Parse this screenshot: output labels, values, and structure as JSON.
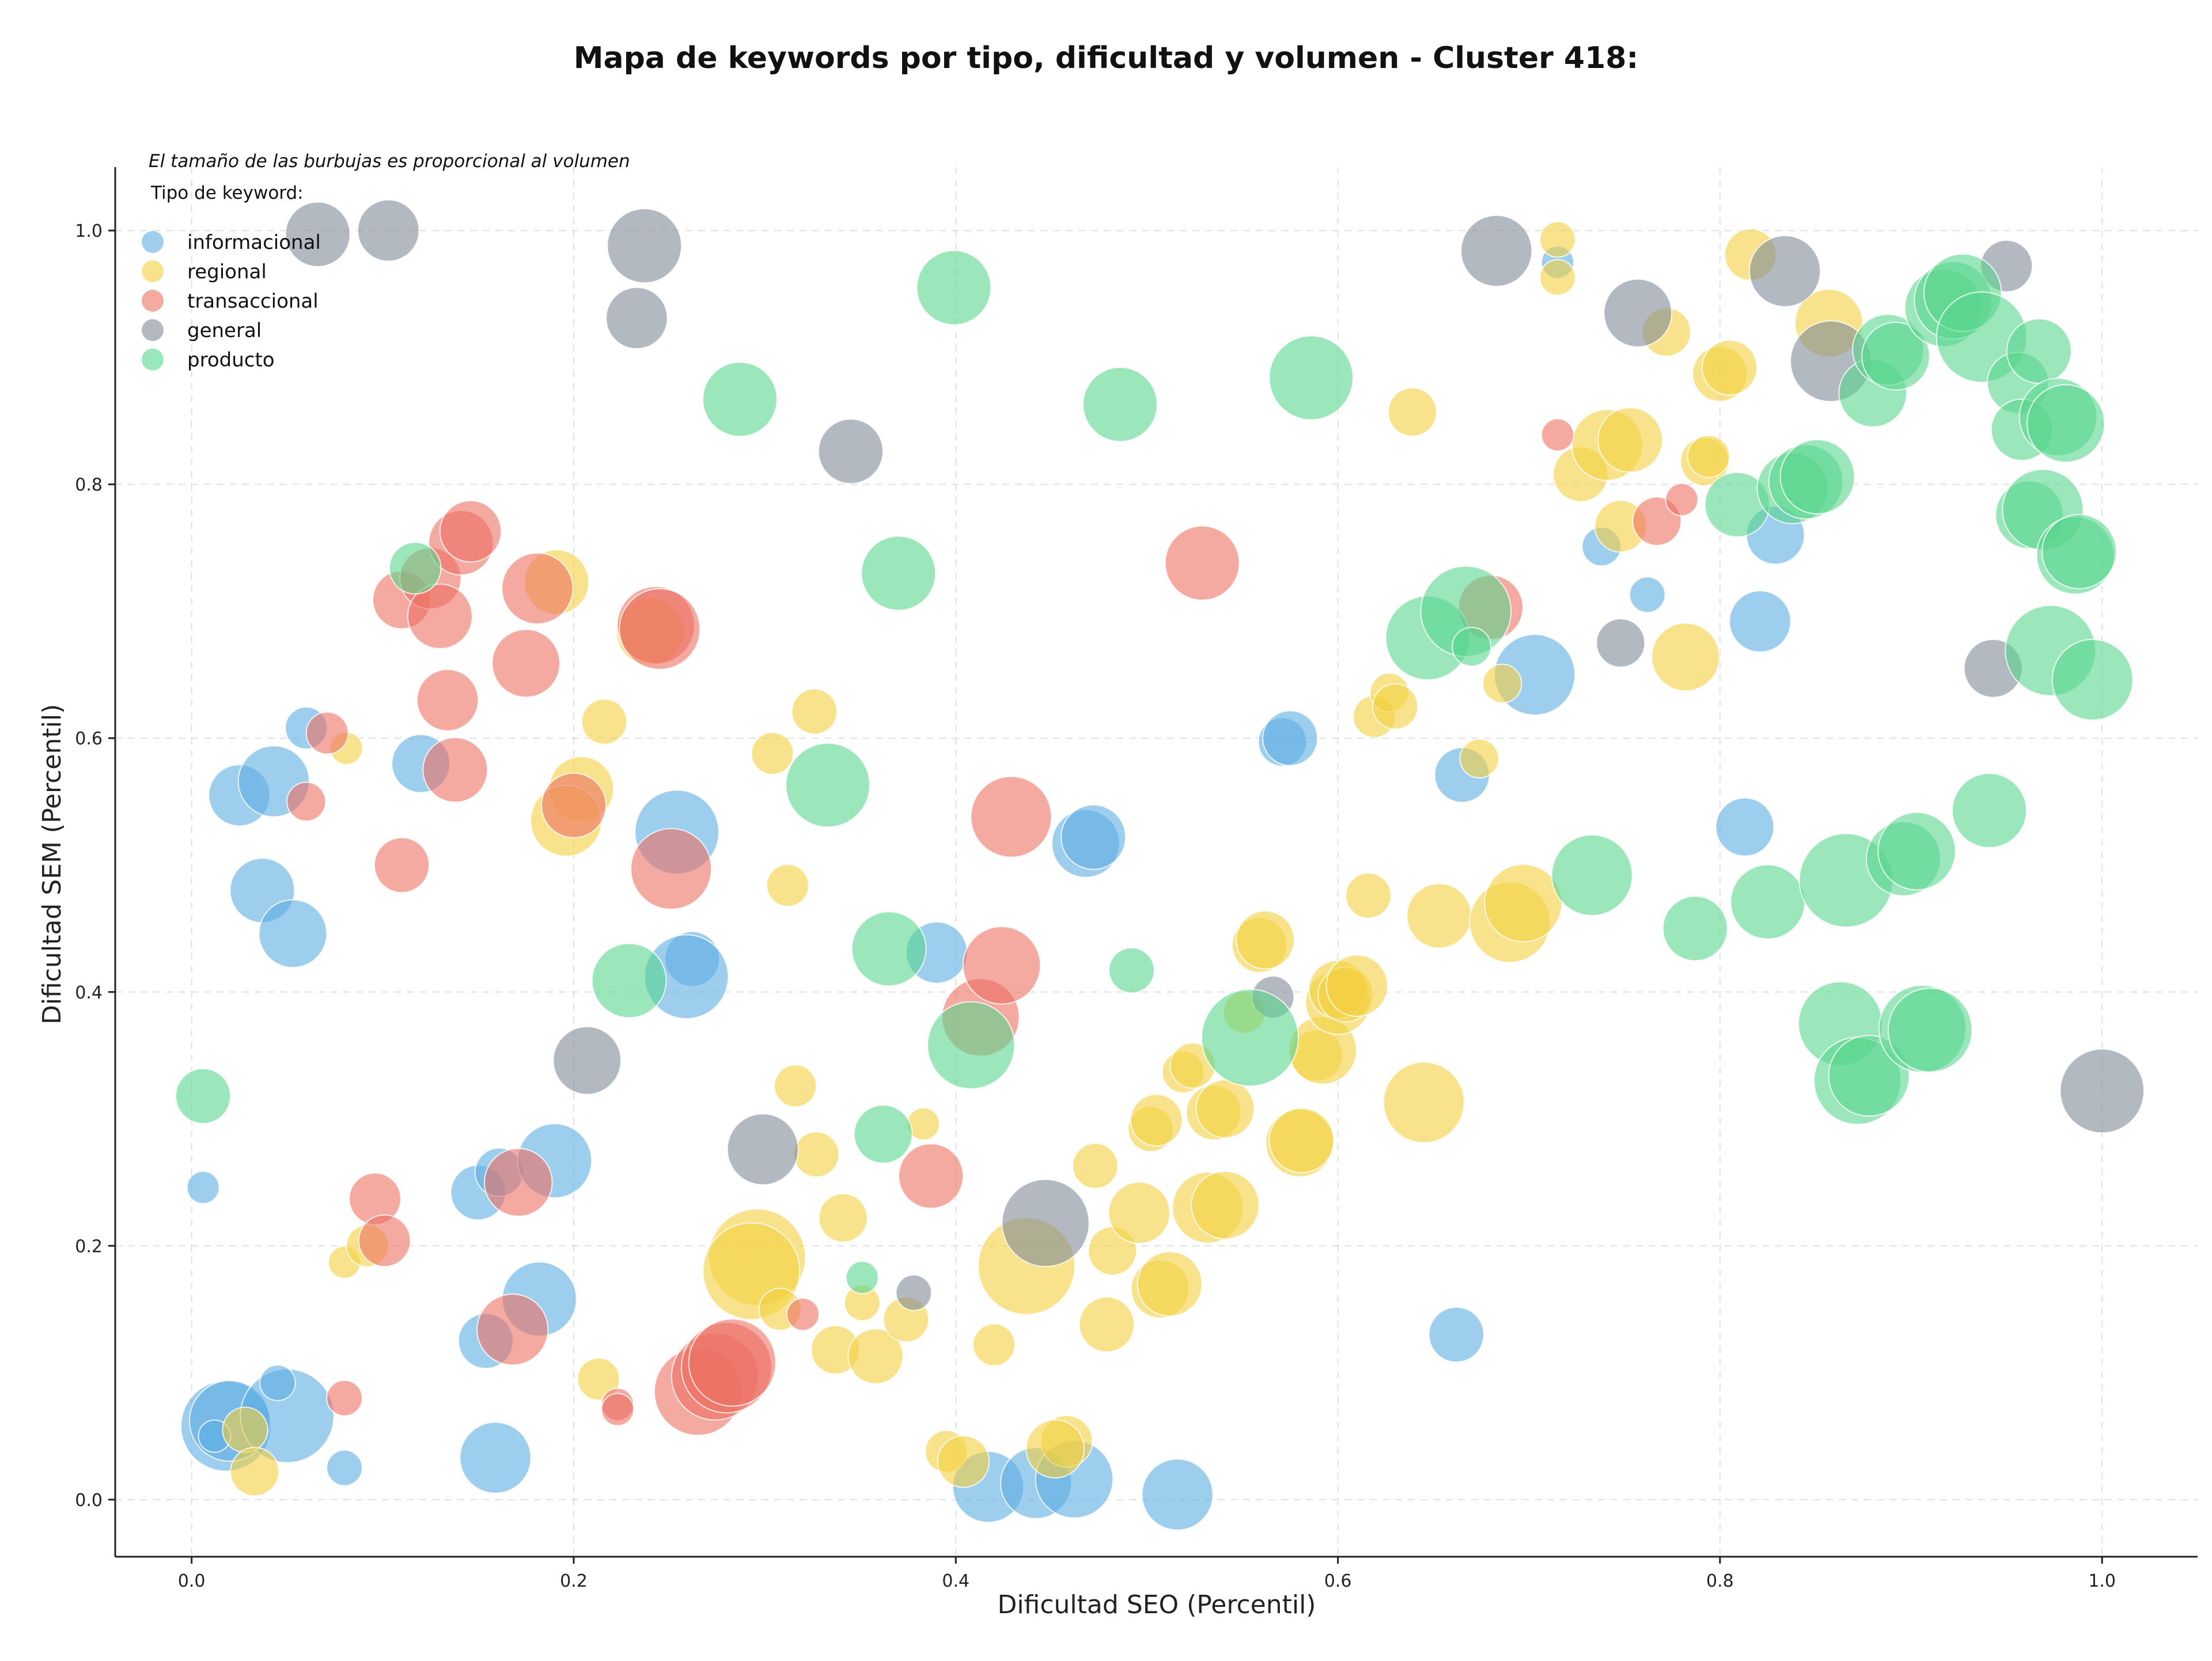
{
  "chart_data": {
    "type": "scatter",
    "title": "Mapa de keywords por tipo, dificultad y volumen - Cluster 418:",
    "xlabel": "Dificultad SEO (Percentil)",
    "ylabel": "Dificultad SEM (Percentil)",
    "xlim": [
      -0.04,
      1.05
    ],
    "ylim": [
      -0.045,
      1.05
    ],
    "xticks": [
      "0.0",
      "0.2",
      "0.4",
      "0.6",
      "0.8",
      "1.0"
    ],
    "yticks": [
      "0.0",
      "0.2",
      "0.4",
      "0.6",
      "0.8",
      "1.0"
    ],
    "grid": true,
    "legend_position": "top-left",
    "note": "El tamaño de las burbujas es proporcional al volumen",
    "legend_title": "Tipo de keyword:",
    "series": [
      {
        "name": "informacional",
        "color": "#5DADE2",
        "points": [
          [
            0.006,
            0.246,
            1
          ],
          [
            0.06,
            0.608,
            1.3
          ],
          [
            0.025,
            0.555,
            1.9
          ],
          [
            0.043,
            0.566,
            2.2
          ],
          [
            0.037,
            0.48,
            2
          ],
          [
            0.053,
            0.446,
            2.1
          ],
          [
            0.018,
            0.058,
            2.8
          ],
          [
            0.02,
            0.062,
            2.5
          ],
          [
            0.012,
            0.05,
            1
          ],
          [
            0.05,
            0.066,
            2.9
          ],
          [
            0.045,
            0.092,
            1.1
          ],
          [
            0.08,
            0.025,
            1.1
          ],
          [
            0.12,
            0.58,
            1.8
          ],
          [
            0.15,
            0.242,
            1.7
          ],
          [
            0.161,
            0.258,
            1.5
          ],
          [
            0.19,
            0.267,
            2.3
          ],
          [
            0.154,
            0.125,
            1.7
          ],
          [
            0.182,
            0.158,
            2.3
          ],
          [
            0.159,
            0.033,
            2.2
          ],
          [
            0.254,
            0.526,
            2.6
          ],
          [
            0.262,
            0.426,
            1.7
          ],
          [
            0.259,
            0.412,
            2.6
          ],
          [
            0.39,
            0.431,
            1.9
          ],
          [
            0.417,
            0.01,
            2.2
          ],
          [
            0.442,
            0.013,
            2.2
          ],
          [
            0.462,
            0.016,
            2.4
          ],
          [
            0.516,
            0.004,
            2.2
          ],
          [
            0.468,
            0.517,
            2.1
          ],
          [
            0.472,
            0.522,
            2
          ],
          [
            0.571,
            0.597,
            1.5
          ],
          [
            0.575,
            0.6,
            1.7
          ],
          [
            0.665,
            0.571,
            1.7
          ],
          [
            0.662,
            0.13,
            1.7
          ],
          [
            0.703,
            0.65,
            2.5
          ],
          [
            0.715,
            0.975,
            1
          ],
          [
            0.738,
            0.751,
            1.2
          ],
          [
            0.762,
            0.713,
            1.1
          ],
          [
            0.813,
            0.53,
            1.8
          ],
          [
            0.821,
            0.692,
            1.9
          ],
          [
            0.829,
            0.76,
            1.8
          ]
        ]
      },
      {
        "name": "regional",
        "color": "#F4D03F",
        "points": [
          [
            0.028,
            0.055,
            1.4
          ],
          [
            0.033,
            0.022,
            1.5
          ],
          [
            0.08,
            0.187,
            1
          ],
          [
            0.081,
            0.592,
            1
          ],
          [
            0.092,
            0.2,
            1.3
          ],
          [
            0.191,
            0.723,
            2
          ],
          [
            0.204,
            0.56,
            2
          ],
          [
            0.196,
            0.535,
            2.2
          ],
          [
            0.216,
            0.613,
            1.4
          ],
          [
            0.213,
            0.095,
            1.3
          ],
          [
            0.24,
            0.684,
            2.1
          ],
          [
            0.304,
            0.588,
            1.3
          ],
          [
            0.326,
            0.621,
            1.4
          ],
          [
            0.312,
            0.484,
            1.3
          ],
          [
            0.316,
            0.326,
            1.3
          ],
          [
            0.327,
            0.272,
            1.4
          ],
          [
            0.341,
            0.222,
            1.5
          ],
          [
            0.296,
            0.191,
            3
          ],
          [
            0.293,
            0.18,
            3
          ],
          [
            0.308,
            0.15,
            1.3
          ],
          [
            0.337,
            0.118,
            1.5
          ],
          [
            0.358,
            0.113,
            1.7
          ],
          [
            0.351,
            0.155,
            1.1
          ],
          [
            0.374,
            0.142,
            1.4
          ],
          [
            0.383,
            0.296,
            1
          ],
          [
            0.395,
            0.038,
            1.3
          ],
          [
            0.404,
            0.03,
            1.6
          ],
          [
            0.42,
            0.122,
            1.3
          ],
          [
            0.437,
            0.184,
            3
          ],
          [
            0.458,
            0.046,
            1.6
          ],
          [
            0.452,
            0.04,
            1.8
          ],
          [
            0.473,
            0.263,
            1.4
          ],
          [
            0.479,
            0.138,
            1.7
          ],
          [
            0.482,
            0.196,
            1.5
          ],
          [
            0.496,
            0.226,
            1.9
          ],
          [
            0.502,
            0.292,
            1.4
          ],
          [
            0.505,
            0.299,
            1.6
          ],
          [
            0.507,
            0.166,
            1.8
          ],
          [
            0.512,
            0.17,
            2
          ],
          [
            0.519,
            0.337,
            1.3
          ],
          [
            0.524,
            0.342,
            1.4
          ],
          [
            0.535,
            0.305,
            1.7
          ],
          [
            0.541,
            0.308,
            1.8
          ],
          [
            0.532,
            0.23,
            2.2
          ],
          [
            0.541,
            0.232,
            2.1
          ],
          [
            0.551,
            0.384,
            1.3
          ],
          [
            0.559,
            0.437,
            1.7
          ],
          [
            0.562,
            0.441,
            1.8
          ],
          [
            0.58,
            0.281,
            2.1
          ],
          [
            0.581,
            0.283,
            2
          ],
          [
            0.589,
            0.35,
            1.6
          ],
          [
            0.592,
            0.354,
            2.1
          ],
          [
            0.6,
            0.392,
            2
          ],
          [
            0.6,
            0.402,
            1.8
          ],
          [
            0.604,
            0.398,
            1.7
          ],
          [
            0.61,
            0.405,
            1.9
          ],
          [
            0.616,
            0.476,
            1.4
          ],
          [
            0.619,
            0.617,
            1.3
          ],
          [
            0.627,
            0.636,
            1.2
          ],
          [
            0.63,
            0.625,
            1.4
          ],
          [
            0.639,
            0.857,
            1.5
          ],
          [
            0.645,
            0.313,
            2.5
          ],
          [
            0.653,
            0.46,
            2
          ],
          [
            0.674,
            0.584,
            1.2
          ],
          [
            0.686,
            0.643,
            1.2
          ],
          [
            0.69,
            0.455,
            2.5
          ],
          [
            0.697,
            0.47,
            2.4
          ],
          [
            0.715,
            0.993,
            1.1
          ],
          [
            0.715,
            0.963,
            1.1
          ],
          [
            0.727,
            0.808,
            1.7
          ],
          [
            0.741,
            0.831,
            2.2
          ],
          [
            0.748,
            0.767,
            1.6
          ],
          [
            0.753,
            0.835,
            2
          ],
          [
            0.772,
            0.92,
            1.5
          ],
          [
            0.782,
            0.664,
            2.1
          ],
          [
            0.792,
            0.818,
            1.5
          ],
          [
            0.794,
            0.822,
            1.3
          ],
          [
            0.8,
            0.887,
            1.7
          ],
          [
            0.805,
            0.892,
            1.7
          ],
          [
            0.816,
            0.981,
            1.6
          ],
          [
            0.857,
            0.927,
            2.1
          ]
        ]
      },
      {
        "name": "transaccional",
        "color": "#EC7063",
        "points": [
          [
            0.06,
            0.55,
            1.2
          ],
          [
            0.071,
            0.604,
            1.3
          ],
          [
            0.08,
            0.08,
            1.1
          ],
          [
            0.096,
            0.237,
            1.6
          ],
          [
            0.101,
            0.204,
            1.6
          ],
          [
            0.11,
            0.5,
            1.7
          ],
          [
            0.11,
            0.709,
            1.8
          ],
          [
            0.125,
            0.726,
            1.9
          ],
          [
            0.13,
            0.696,
            2
          ],
          [
            0.134,
            0.63,
            1.9
          ],
          [
            0.138,
            0.575,
            2
          ],
          [
            0.141,
            0.754,
            2
          ],
          [
            0.146,
            0.763,
            1.9
          ],
          [
            0.175,
            0.659,
            2.1
          ],
          [
            0.181,
            0.718,
            2.2
          ],
          [
            0.171,
            0.25,
            2.1
          ],
          [
            0.168,
            0.134,
            2.2
          ],
          [
            0.2,
            0.547,
            2
          ],
          [
            0.223,
            0.075,
            1
          ],
          [
            0.223,
            0.071,
            1
          ],
          [
            0.243,
            0.689,
            2.4
          ],
          [
            0.245,
            0.686,
            2.5
          ],
          [
            0.251,
            0.497,
            2.5
          ],
          [
            0.265,
            0.085,
            2.7
          ],
          [
            0.274,
            0.097,
            2.7
          ],
          [
            0.28,
            0.104,
            2.8
          ],
          [
            0.283,
            0.108,
            2.7
          ],
          [
            0.32,
            0.146,
            1
          ],
          [
            0.387,
            0.255,
            2
          ],
          [
            0.413,
            0.38,
            2.4
          ],
          [
            0.424,
            0.421,
            2.4
          ],
          [
            0.429,
            0.538,
            2.5
          ],
          [
            0.529,
            0.738,
            2.3
          ],
          [
            0.68,
            0.703,
            2
          ],
          [
            0.715,
            0.839,
            1
          ],
          [
            0.767,
            0.771,
            1.5
          ],
          [
            0.78,
            0.788,
            1
          ]
        ]
      },
      {
        "name": "general",
        "color": "#808B96",
        "points": [
          [
            0.066,
            0.997,
            2
          ],
          [
            0.103,
            1.0,
            1.9
          ],
          [
            0.233,
            0.931,
            1.9
          ],
          [
            0.237,
            0.988,
            2.3
          ],
          [
            0.207,
            0.346,
            2.1
          ],
          [
            0.299,
            0.276,
            2.2
          ],
          [
            0.345,
            0.826,
            2
          ],
          [
            0.378,
            0.163,
            1.1
          ],
          [
            0.447,
            0.218,
            2.7
          ],
          [
            0.566,
            0.396,
            1.3
          ],
          [
            0.683,
            0.984,
            2.2
          ],
          [
            0.748,
            0.675,
            1.5
          ],
          [
            0.757,
            0.935,
            2.1
          ],
          [
            0.834,
            0.968,
            2.2
          ],
          [
            0.858,
            0.897,
            2.5
          ],
          [
            0.943,
            0.655,
            1.8
          ],
          [
            0.95,
            0.972,
            1.6
          ],
          [
            1.0,
            0.322,
            2.6
          ]
        ]
      },
      {
        "name": "producto",
        "color": "#58D68D",
        "points": [
          [
            0.006,
            0.318,
            1.7
          ],
          [
            0.117,
            0.734,
            1.6
          ],
          [
            0.229,
            0.409,
            2.3
          ],
          [
            0.287,
            0.867,
            2.3
          ],
          [
            0.333,
            0.563,
            2.6
          ],
          [
            0.351,
            0.175,
            1
          ],
          [
            0.362,
            0.288,
            1.8
          ],
          [
            0.37,
            0.73,
            2.3
          ],
          [
            0.365,
            0.434,
            2.3
          ],
          [
            0.399,
            0.955,
            2.3
          ],
          [
            0.408,
            0.358,
            2.7
          ],
          [
            0.486,
            0.863,
            2.3
          ],
          [
            0.492,
            0.417,
            1.4
          ],
          [
            0.554,
            0.364,
            3
          ],
          [
            0.586,
            0.884,
            2.6
          ],
          [
            0.647,
            0.679,
            2.6
          ],
          [
            0.667,
            0.7,
            2.8
          ],
          [
            0.67,
            0.672,
            1.2
          ],
          [
            0.733,
            0.492,
            2.5
          ],
          [
            0.787,
            0.45,
            2
          ],
          [
            0.809,
            0.784,
            2
          ],
          [
            0.825,
            0.471,
            2.3
          ],
          [
            0.838,
            0.797,
            2.2
          ],
          [
            0.845,
            0.802,
            2.3
          ],
          [
            0.851,
            0.806,
            2.3
          ],
          [
            0.866,
            0.488,
            2.9
          ],
          [
            0.863,
            0.375,
            2.6
          ],
          [
            0.872,
            0.33,
            2.7
          ],
          [
            0.878,
            0.334,
            2.5
          ],
          [
            0.88,
            0.872,
            2.1
          ],
          [
            0.888,
            0.906,
            2.2
          ],
          [
            0.892,
            0.901,
            2.1
          ],
          [
            0.896,
            0.505,
            2.3
          ],
          [
            0.903,
            0.511,
            2.4
          ],
          [
            0.906,
            0.371,
            2.7
          ],
          [
            0.91,
            0.37,
            2.6
          ],
          [
            0.917,
            0.939,
            2.4
          ],
          [
            0.922,
            0.945,
            2.4
          ],
          [
            0.927,
            0.951,
            2.4
          ],
          [
            0.941,
            0.543,
            2.3
          ],
          [
            0.937,
            0.916,
            2.8
          ],
          [
            0.956,
            0.88,
            1.9
          ],
          [
            0.958,
            0.843,
            1.9
          ],
          [
            0.962,
            0.776,
            2.1
          ],
          [
            0.967,
            0.905,
            2
          ],
          [
            0.969,
            0.78,
            2.5
          ],
          [
            0.973,
            0.669,
            2.8
          ],
          [
            0.977,
            0.853,
            2.4
          ],
          [
            0.981,
            0.848,
            2.4
          ],
          [
            0.986,
            0.744,
            2.4
          ],
          [
            0.988,
            0.747,
            2.3
          ],
          [
            0.995,
            0.646,
            2.5
          ]
        ]
      }
    ]
  }
}
